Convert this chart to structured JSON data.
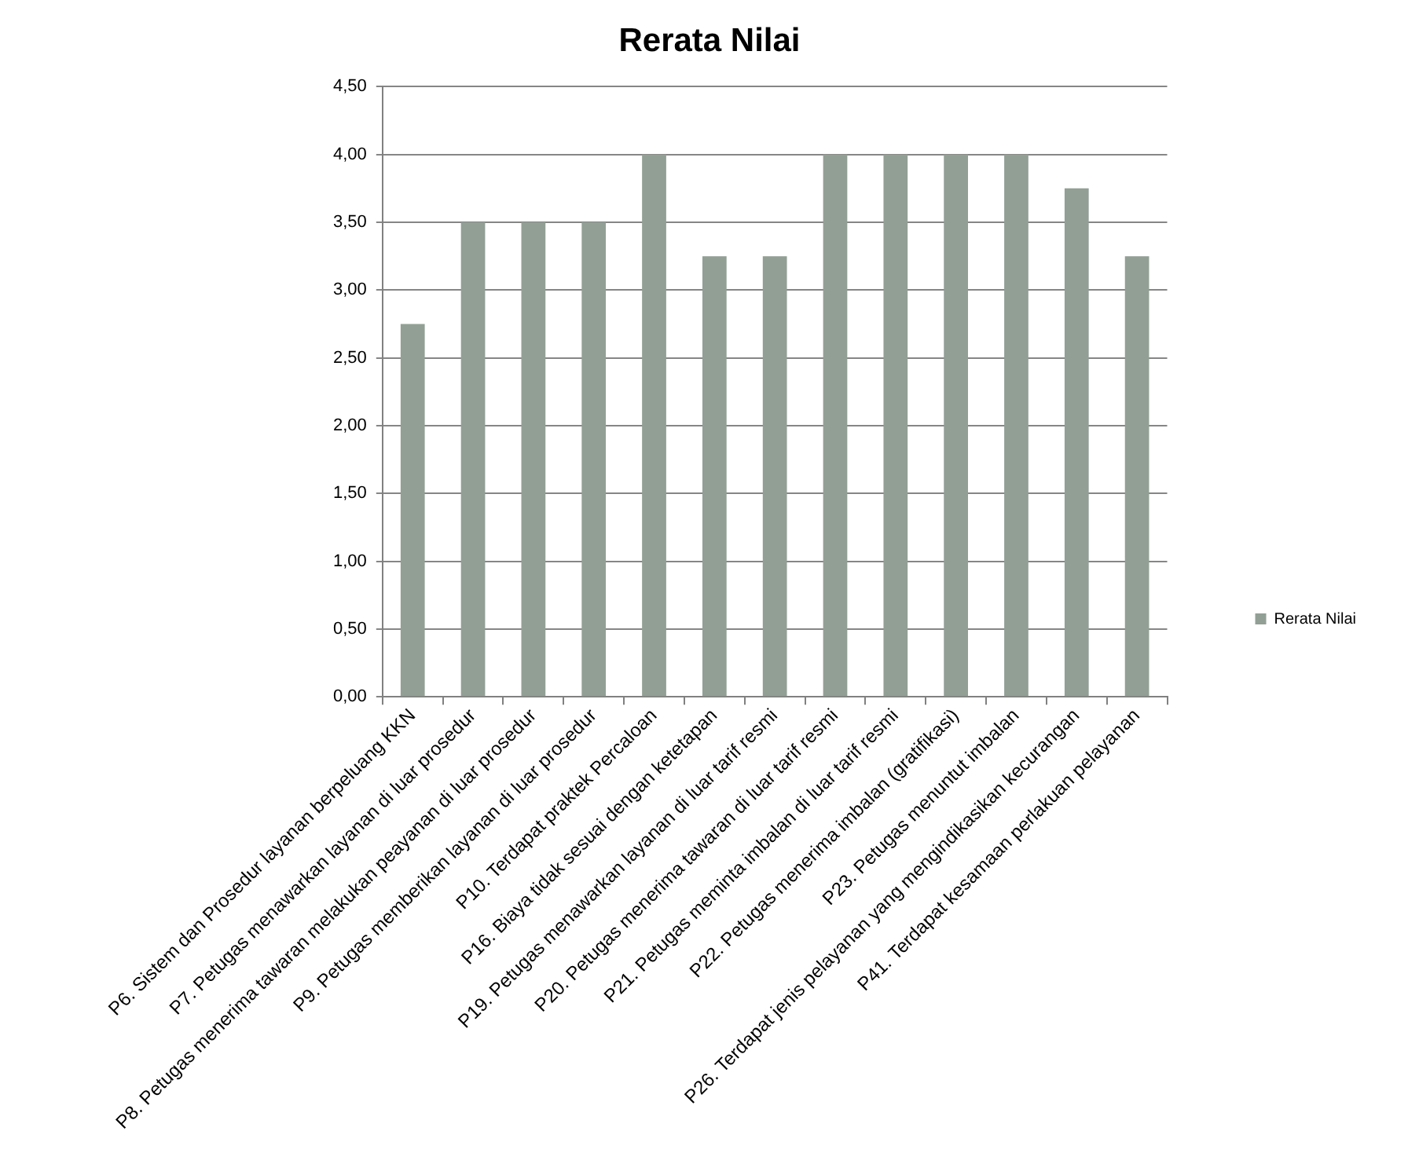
{
  "chart_data": {
    "type": "bar",
    "title": "Rerata Nilai",
    "categories": [
      "P6. Sistem dan Prosedur layanan berpeluang KKN",
      "P7. Petugas menawarkan layanan di luar prosedur",
      "P8. Petugas menerima tawaran melakukan peayanan di luar prosedur",
      "P9. Petugas memberikan layanan di luar prosedur",
      "P10. Terdapat praktek Percaloan",
      "P16. Biaya tidak sesuai dengan ketetapan",
      "P19. Petugas menawarkan layanan di luar tarif resmi",
      "P20. Petugas menerima tawaran di luar tarif resmi",
      "P21. Petugas meminta imbalan di luar tarif resmi",
      "P22. Petugas menerima imbalan (gratifikasi)",
      "P23. Petugas menuntut imbalan",
      "P26. Terdapat jenis pelayanan yang mengindikasikan kecurangan",
      "P41. Terdapat kesamaan perlakuan pelayanan"
    ],
    "series": [
      {
        "name": "Rerata Nilai",
        "color": "#929f95",
        "values": [
          2.75,
          3.5,
          3.5,
          3.5,
          4,
          3.25,
          3.25,
          4,
          4,
          4,
          4,
          3.75,
          3.25
        ]
      }
    ],
    "ylim": [
      0,
      4.5
    ],
    "yticks": [
      {
        "value": 0,
        "label": "0,00"
      },
      {
        "value": 0.5,
        "label": "0,50"
      },
      {
        "value": 1,
        "label": "1,00"
      },
      {
        "value": 1.5,
        "label": "1,50"
      },
      {
        "value": 2,
        "label": "2,00"
      },
      {
        "value": 2.5,
        "label": "2,50"
      },
      {
        "value": 3,
        "label": "3,00"
      },
      {
        "value": 3.5,
        "label": "3,50"
      },
      {
        "value": 4,
        "label": "4,00"
      },
      {
        "value": 4.5,
        "label": "4,50"
      }
    ],
    "grid": "y",
    "legend": "right"
  }
}
